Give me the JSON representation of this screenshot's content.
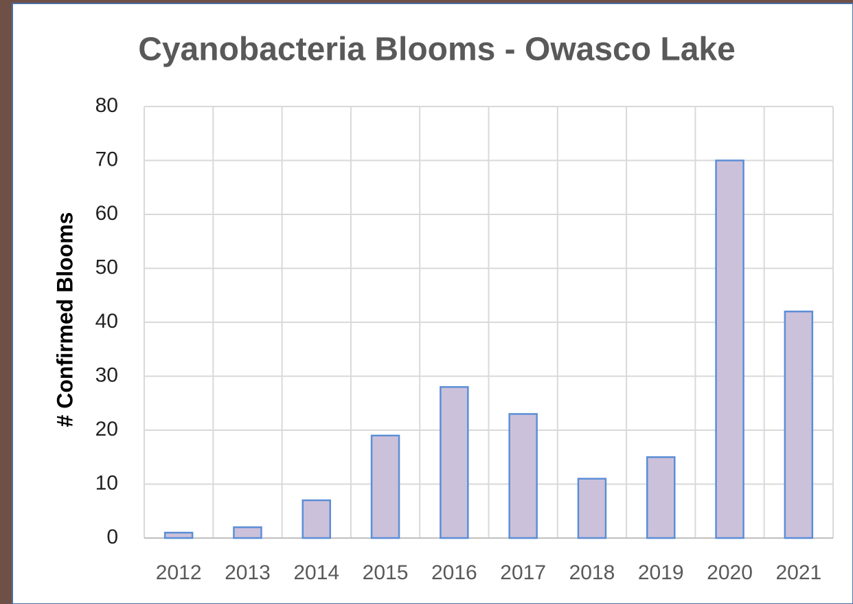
{
  "chart_data": {
    "type": "bar",
    "title": "Cyanobacteria Blooms - Owasco Lake",
    "y_label": "# Confirmed Blooms",
    "categories": [
      "2012",
      "2013",
      "2014",
      "2015",
      "2016",
      "2017",
      "2018",
      "2019",
      "2020",
      "2021"
    ],
    "values": [
      1,
      2,
      7,
      19,
      28,
      23,
      11,
      15,
      70,
      42
    ],
    "color": "#ccc1da",
    "edge_color": "#5b8ed6",
    "ylim": [
      0,
      80
    ],
    "yticks": [
      0,
      10,
      20,
      30,
      40,
      50,
      60,
      70,
      80
    ],
    "grid": true
  }
}
